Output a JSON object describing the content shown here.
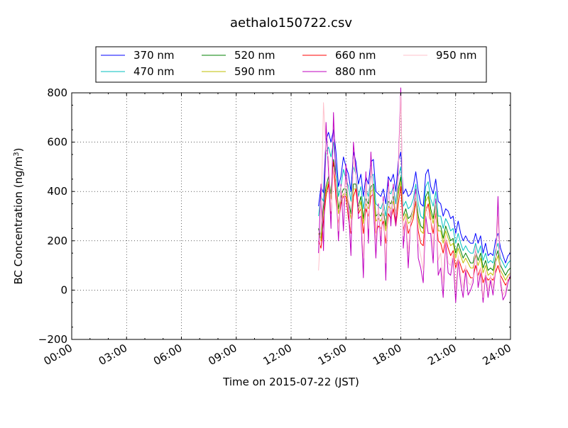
{
  "chart_data": {
    "type": "line",
    "title": "aethalo150722.csv",
    "xlabel": "Time on 2015-07-22 (JST)",
    "ylabel_main": "BC Concentration (ng/m",
    "ylabel_sup": "3",
    "ylabel_close": ")",
    "xlim": [
      "00:00",
      "24:00"
    ],
    "ylim": [
      -200,
      800
    ],
    "x_ticks": [
      "00:00",
      "03:00",
      "06:00",
      "09:00",
      "12:00",
      "15:00",
      "18:00",
      "21:00",
      "24:00"
    ],
    "y_ticks": [
      "800",
      "600",
      "400",
      "200",
      "0",
      "−200"
    ],
    "grid": true,
    "legend_position": "top",
    "data_start": "13:30",
    "data_end": "24:00",
    "series": [
      {
        "name": "370 nm",
        "color": "#0000ff",
        "values": [
          340,
          420,
          395,
          610,
          640,
          600,
          650,
          560,
          420,
          460,
          540,
          500,
          470,
          400,
          560,
          520,
          430,
          470,
          380,
          460,
          430,
          520,
          530,
          400,
          390,
          380,
          410,
          350,
          460,
          440,
          470,
          400,
          520,
          560,
          390,
          410,
          380,
          390,
          420,
          480,
          400,
          350,
          340,
          470,
          490,
          420,
          390,
          450,
          360,
          350,
          300,
          330,
          320,
          290,
          300,
          230,
          280,
          230,
          200,
          220,
          200,
          190,
          190,
          230,
          190,
          220,
          150,
          190,
          140,
          150,
          140,
          200,
          230,
          170,
          140,
          110,
          140,
          150
        ]
      },
      {
        "name": "470 nm",
        "color": "#00bfbf",
        "values": [
          300,
          380,
          360,
          560,
          580,
          540,
          600,
          500,
          380,
          420,
          490,
          450,
          420,
          360,
          500,
          470,
          380,
          420,
          330,
          410,
          380,
          460,
          470,
          350,
          340,
          330,
          360,
          300,
          400,
          390,
          420,
          350,
          460,
          500,
          340,
          360,
          330,
          340,
          370,
          430,
          350,
          300,
          290,
          420,
          440,
          370,
          340,
          400,
          300,
          300,
          250,
          290,
          270,
          240,
          250,
          190,
          230,
          190,
          160,
          180,
          160,
          150,
          150,
          190,
          150,
          180,
          120,
          150,
          110,
          120,
          110,
          160,
          190,
          130,
          110,
          90,
          110,
          120
        ]
      },
      {
        "name": "520 nm",
        "color": "#008000",
        "values": [
          250,
          210,
          340,
          420,
          460,
          390,
          530,
          450,
          330,
          380,
          410,
          410,
          360,
          310,
          430,
          430,
          340,
          380,
          290,
          370,
          350,
          420,
          430,
          300,
          310,
          300,
          330,
          260,
          360,
          350,
          380,
          310,
          410,
          460,
          300,
          330,
          290,
          300,
          330,
          380,
          300,
          260,
          250,
          380,
          400,
          330,
          290,
          360,
          260,
          260,
          210,
          260,
          230,
          200,
          210,
          150,
          190,
          160,
          130,
          150,
          130,
          110,
          110,
          160,
          120,
          150,
          90,
          120,
          80,
          90,
          80,
          130,
          160,
          100,
          80,
          60,
          80,
          90
        ]
      },
      {
        "name": "590 nm",
        "color": "#bfbf00",
        "values": [
          230,
          200,
          320,
          400,
          440,
          370,
          510,
          430,
          310,
          360,
          390,
          390,
          340,
          290,
          410,
          410,
          320,
          360,
          270,
          350,
          330,
          400,
          410,
          280,
          290,
          280,
          310,
          240,
          340,
          330,
          360,
          290,
          390,
          440,
          280,
          310,
          270,
          280,
          310,
          360,
          280,
          240,
          230,
          360,
          380,
          310,
          270,
          340,
          240,
          240,
          190,
          240,
          210,
          180,
          190,
          130,
          170,
          140,
          110,
          130,
          110,
          90,
          90,
          140,
          100,
          130,
          70,
          100,
          60,
          70,
          60,
          110,
          140,
          80,
          60,
          40,
          60,
          70
        ]
      },
      {
        "name": "660 nm",
        "color": "#ff0000",
        "values": [
          200,
          170,
          280,
          380,
          430,
          310,
          520,
          370,
          270,
          350,
          380,
          380,
          290,
          230,
          380,
          410,
          310,
          330,
          230,
          330,
          300,
          380,
          390,
          230,
          260,
          250,
          280,
          190,
          310,
          290,
          330,
          260,
          350,
          420,
          240,
          290,
          230,
          260,
          290,
          360,
          240,
          190,
          180,
          320,
          350,
          280,
          230,
          310,
          200,
          190,
          150,
          210,
          170,
          140,
          160,
          90,
          130,
          100,
          70,
          90,
          70,
          50,
          50,
          100,
          60,
          90,
          30,
          60,
          40,
          50,
          40,
          70,
          100,
          60,
          40,
          20,
          40,
          50
        ]
      },
      {
        "name": "880 nm",
        "color": "#bf00bf",
        "values": [
          150,
          430,
          160,
          680,
          480,
          250,
          720,
          430,
          200,
          430,
          240,
          510,
          330,
          140,
          600,
          480,
          290,
          300,
          50,
          480,
          190,
          560,
          340,
          130,
          350,
          180,
          380,
          40,
          450,
          260,
          430,
          260,
          500,
          820,
          170,
          300,
          90,
          290,
          330,
          410,
          130,
          90,
          30,
          300,
          230,
          230,
          110,
          370,
          60,
          90,
          -30,
          200,
          70,
          60,
          130,
          -50,
          120,
          30,
          -30,
          80,
          -20,
          0,
          30,
          180,
          10,
          70,
          -50,
          60,
          -30,
          40,
          -20,
          80,
          380,
          30,
          -40,
          -20,
          30,
          60
        ]
      },
      {
        "name": "950 nm",
        "color": "#ffc0cb",
        "values": [
          80,
          260,
          760,
          560,
          540,
          320,
          500,
          450,
          240,
          420,
          340,
          450,
          360,
          240,
          530,
          470,
          350,
          330,
          130,
          440,
          250,
          500,
          380,
          200,
          340,
          220,
          360,
          110,
          420,
          300,
          410,
          300,
          460,
          790,
          220,
          300,
          150,
          290,
          330,
          390,
          190,
          140,
          80,
          340,
          300,
          280,
          170,
          350,
          120,
          150,
          30,
          220,
          110,
          100,
          150,
          0,
          140,
          60,
          10,
          100,
          30,
          20,
          50,
          180,
          40,
          90,
          -30,
          80,
          0,
          60,
          10,
          90,
          300,
          50,
          -20,
          0,
          50,
          70
        ]
      }
    ]
  }
}
